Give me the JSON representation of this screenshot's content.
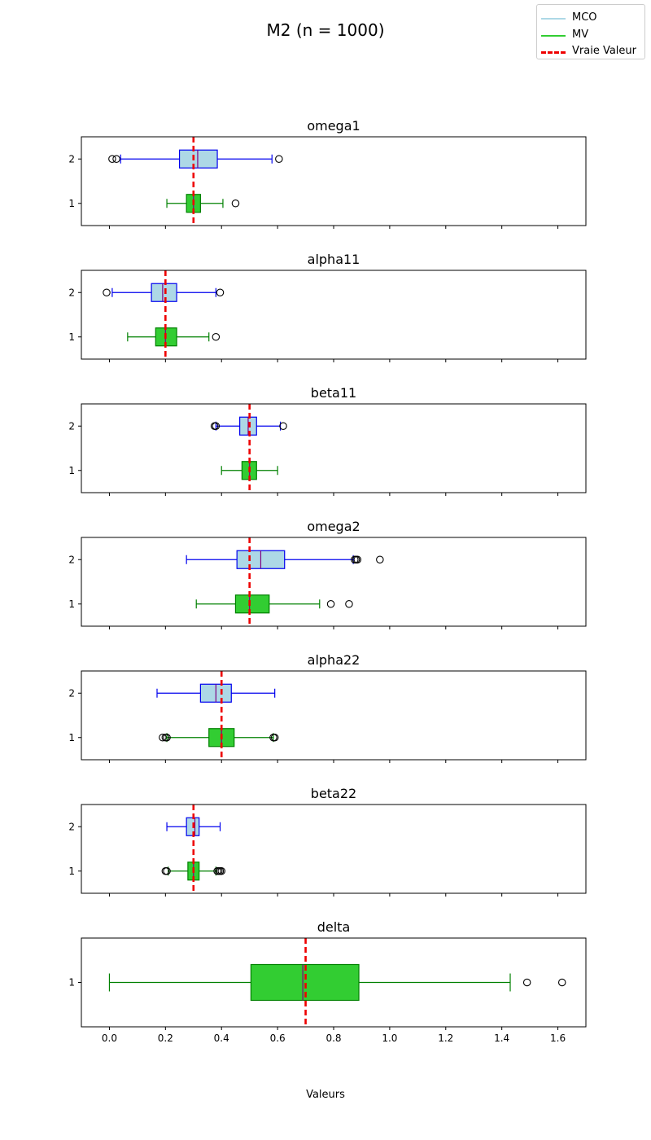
{
  "chart_data": {
    "type": "boxplot",
    "title": "M2 (n = 1000)",
    "xlabel": "Valeurs",
    "xlim": [
      -0.1,
      1.7
    ],
    "x_ticks": [
      0.0,
      0.2,
      0.4,
      0.6,
      0.8,
      1.0,
      1.2,
      1.4,
      1.6
    ],
    "x_tick_labels": [
      "0.0",
      "0.2",
      "0.4",
      "0.6",
      "0.8",
      "1.0",
      "1.2",
      "1.4",
      "1.6"
    ],
    "legend": {
      "placement": "top-right",
      "entries": [
        {
          "label": "MCO",
          "color": "#add8e6",
          "style": "solid"
        },
        {
          "label": "MV",
          "color": "#32cd32",
          "style": "solid"
        },
        {
          "label": "Vraie Valeur",
          "color": "#ee0000",
          "style": "dashed"
        }
      ]
    },
    "colors": {
      "mco_fill": "#add8e6",
      "mco_edge": "#0000ee",
      "mv_fill": "#32cd32",
      "mv_edge": "#008000",
      "median": "#800080",
      "true_value": "#ee0000"
    },
    "panels": [
      {
        "title": "omega1",
        "true_value": 0.3,
        "y_ticks": [
          "1",
          "2"
        ],
        "boxes": [
          {
            "position": "2",
            "estimator": "MCO",
            "whislo": 0.04,
            "q1": 0.25,
            "med": 0.315,
            "q3": 0.385,
            "whishi": 0.58,
            "fliers": [
              0.01,
              0.025,
              0.605
            ]
          },
          {
            "position": "1",
            "estimator": "MV",
            "whislo": 0.205,
            "q1": 0.275,
            "med": 0.3,
            "q3": 0.325,
            "whishi": 0.405,
            "fliers": [
              0.45
            ]
          }
        ]
      },
      {
        "title": "alpha11",
        "true_value": 0.2,
        "y_ticks": [
          "1",
          "2"
        ],
        "boxes": [
          {
            "position": "2",
            "estimator": "MCO",
            "whislo": 0.01,
            "q1": 0.15,
            "med": 0.19,
            "q3": 0.24,
            "whishi": 0.38,
            "fliers": [
              -0.01,
              0.395
            ]
          },
          {
            "position": "1",
            "estimator": "MV",
            "whislo": 0.065,
            "q1": 0.165,
            "med": 0.2,
            "q3": 0.24,
            "whishi": 0.355,
            "fliers": [
              0.38
            ]
          }
        ]
      },
      {
        "title": "beta11",
        "true_value": 0.5,
        "y_ticks": [
          "1",
          "2"
        ],
        "boxes": [
          {
            "position": "2",
            "estimator": "MCO",
            "whislo": 0.38,
            "q1": 0.465,
            "med": 0.495,
            "q3": 0.525,
            "whishi": 0.61,
            "fliers": [
              0.375,
              0.38,
              0.62
            ]
          },
          {
            "position": "1",
            "estimator": "MV",
            "whislo": 0.4,
            "q1": 0.473,
            "med": 0.5,
            "q3": 0.525,
            "whishi": 0.6,
            "fliers": []
          }
        ]
      },
      {
        "title": "omega2",
        "true_value": 0.5,
        "y_ticks": [
          "1",
          "2"
        ],
        "boxes": [
          {
            "position": "2",
            "estimator": "MCO",
            "whislo": 0.275,
            "q1": 0.455,
            "med": 0.54,
            "q3": 0.625,
            "whishi": 0.87,
            "fliers": [
              0.875,
              0.88,
              0.885,
              0.965
            ]
          },
          {
            "position": "1",
            "estimator": "MV",
            "whislo": 0.31,
            "q1": 0.45,
            "med": 0.5,
            "q3": 0.57,
            "whishi": 0.75,
            "fliers": [
              0.79,
              0.855
            ]
          }
        ]
      },
      {
        "title": "alpha22",
        "true_value": 0.4,
        "y_ticks": [
          "1",
          "2"
        ],
        "boxes": [
          {
            "position": "2",
            "estimator": "MCO",
            "whislo": 0.17,
            "q1": 0.325,
            "med": 0.38,
            "q3": 0.435,
            "whishi": 0.59,
            "fliers": []
          },
          {
            "position": "1",
            "estimator": "MV",
            "whislo": 0.205,
            "q1": 0.355,
            "med": 0.4,
            "q3": 0.445,
            "whishi": 0.585,
            "fliers": [
              0.19,
              0.2,
              0.205,
              0.585,
              0.59
            ]
          }
        ]
      },
      {
        "title": "beta22",
        "true_value": 0.3,
        "y_ticks": [
          "1",
          "2"
        ],
        "boxes": [
          {
            "position": "2",
            "estimator": "MCO",
            "whislo": 0.205,
            "q1": 0.275,
            "med": 0.305,
            "q3": 0.32,
            "whishi": 0.395,
            "fliers": []
          },
          {
            "position": "1",
            "estimator": "MV",
            "whislo": 0.21,
            "q1": 0.28,
            "med": 0.3,
            "q3": 0.32,
            "whishi": 0.38,
            "fliers": [
              0.2,
              0.205,
              0.385,
              0.39,
              0.395,
              0.4
            ]
          }
        ]
      },
      {
        "title": "delta",
        "true_value": 0.7,
        "y_ticks": [
          "1"
        ],
        "boxes": [
          {
            "position": "1",
            "estimator": "MV",
            "whislo": 0.0,
            "q1": 0.505,
            "med": 0.69,
            "q3": 0.89,
            "whishi": 1.43,
            "fliers": [
              1.49,
              1.615
            ]
          }
        ]
      }
    ]
  }
}
